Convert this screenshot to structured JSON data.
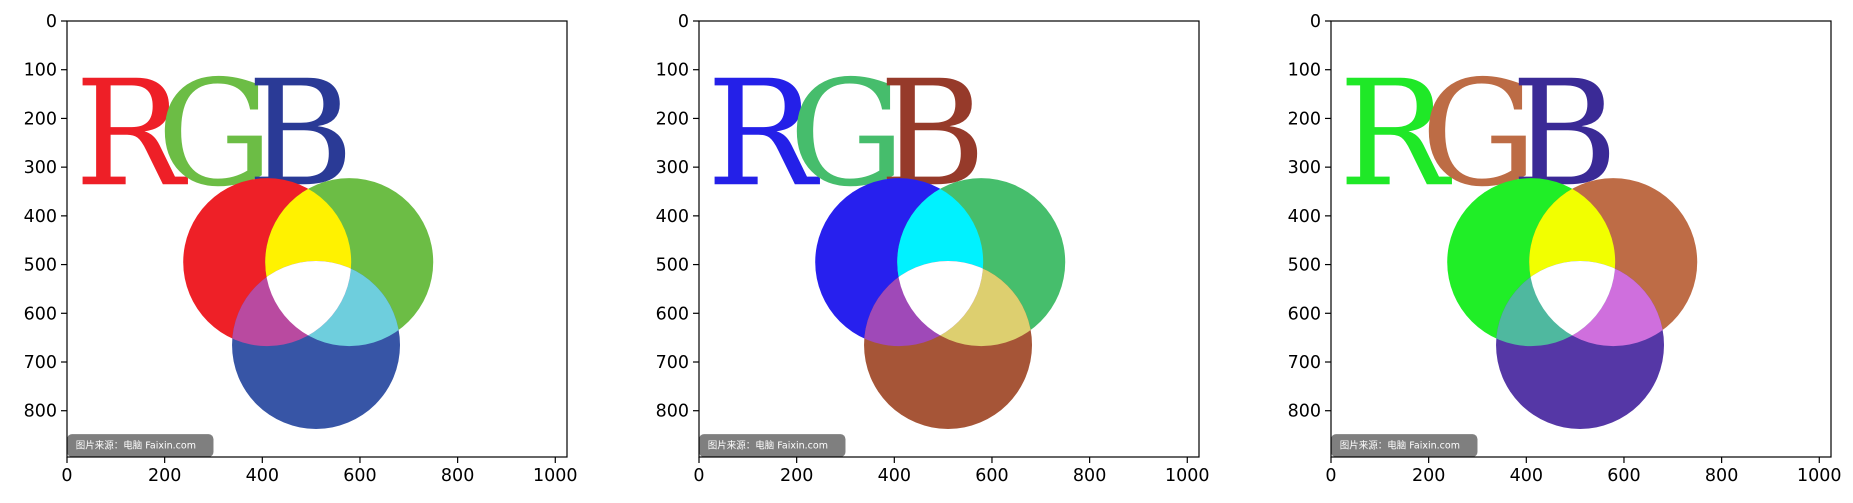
{
  "figure": {
    "panels": [
      {
        "id": "panel-1",
        "letters": [
          {
            "char": "R",
            "color": "#ee1f27"
          },
          {
            "char": "G",
            "color": "#6cbd45"
          },
          {
            "char": "B",
            "color": "#2a3a96"
          }
        ],
        "circles": {
          "red": "#ee2027",
          "green": "#6cbd45",
          "blue": "#3755a6"
        },
        "overlaps": {
          "red_green": "#fff200",
          "green_blue": "#6ecedd",
          "red_blue": "#b94aa0"
        },
        "center": "#ffffff"
      },
      {
        "id": "panel-2",
        "letters": [
          {
            "char": "R",
            "color": "#2420e8"
          },
          {
            "char": "G",
            "color": "#46bd6c"
          },
          {
            "char": "B",
            "color": "#963a2a"
          }
        ],
        "circles": {
          "red": "#2720ee",
          "green": "#46be6c",
          "blue": "#a65537"
        },
        "overlaps": {
          "red_green": "#00f2ff",
          "green_blue": "#ddcf6f",
          "red_blue": "#9f49b8"
        },
        "center": "#ffffff"
      },
      {
        "id": "panel-3",
        "letters": [
          {
            "char": "R",
            "color": "#1fe827"
          },
          {
            "char": "G",
            "color": "#bd6c45"
          },
          {
            "char": "B",
            "color": "#3a2a96"
          }
        ],
        "circles": {
          "red": "#20ee27",
          "green": "#be6c46",
          "blue": "#5537a6"
        },
        "overlaps": {
          "red_green": "#f2ff00",
          "green_blue": "#cf6fdd",
          "red_blue": "#4fb89f"
        },
        "center": "#ffffff"
      }
    ],
    "axes": {
      "x_ticks": [
        "0",
        "200",
        "400",
        "600",
        "800",
        "1000"
      ],
      "y_ticks": [
        "0",
        "100",
        "200",
        "300",
        "400",
        "500",
        "600",
        "700",
        "800"
      ],
      "x_range": [
        0,
        1024
      ],
      "y_range": [
        895,
        0
      ]
    },
    "watermark": "图片来源：电脑 Faixin.com"
  }
}
